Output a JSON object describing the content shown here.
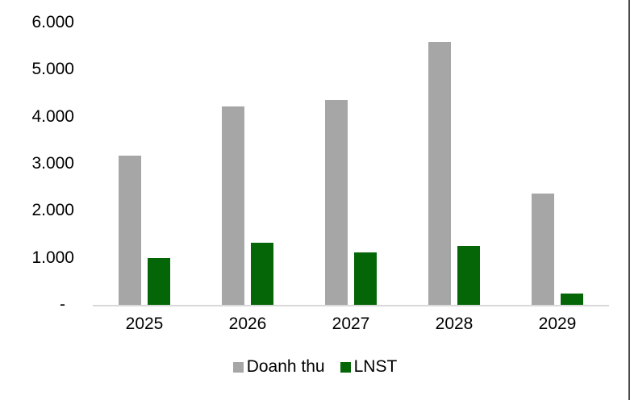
{
  "chart_data": {
    "type": "bar",
    "title": "",
    "xlabel": "",
    "ylabel": "",
    "categories": [
      "2025",
      "2026",
      "2027",
      "2028",
      "2029"
    ],
    "series": [
      {
        "name": "Doanh thu",
        "color": "#a6a6a6",
        "values": [
          3170,
          4210,
          4360,
          5590,
          2370
        ]
      },
      {
        "name": "LNST",
        "color": "#056608",
        "values": [
          1000,
          1320,
          1120,
          1250,
          240
        ]
      }
    ],
    "ylim": [
      0,
      6000
    ],
    "ytick_interval": 1000,
    "ytick_labels_top_to_bottom": [
      "6.000",
      "5.000",
      "4.000",
      "3.000",
      "2.000",
      "1.000",
      "-"
    ],
    "grid": false,
    "legend_position": "bottom",
    "axis_line_color": "#d9d9d9",
    "frame_right_line_color": "#4a4a4a"
  }
}
